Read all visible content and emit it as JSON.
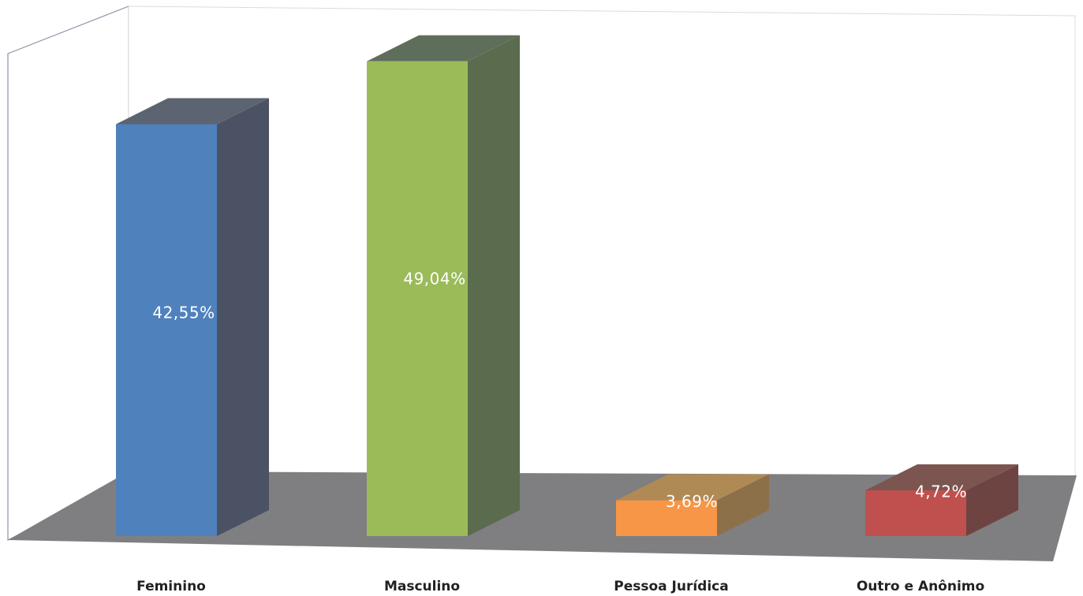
{
  "chart_data": {
    "type": "bar",
    "style": "3d-column",
    "categories": [
      "Feminino",
      "Masculino",
      "Pessoa Jurídica",
      "Outro e Anônimo"
    ],
    "values": [
      42.55,
      49.04,
      3.69,
      4.72
    ],
    "value_labels": [
      "42,55%",
      "49,04%",
      "3,69%",
      "4,72%"
    ],
    "unit": "%",
    "ylim": [
      0,
      50
    ],
    "grid": false,
    "legend": "none",
    "colors": [
      "#4f81bd",
      "#9bbb59",
      "#f79646",
      "#c0504d"
    ],
    "side_colors": [
      "#4b5263",
      "#5a6b4e",
      "#8c7049",
      "#6e4442"
    ],
    "top_colors": [
      "#5b6470",
      "#5f6e5a",
      "#b08a55",
      "#7c5550"
    ]
  }
}
